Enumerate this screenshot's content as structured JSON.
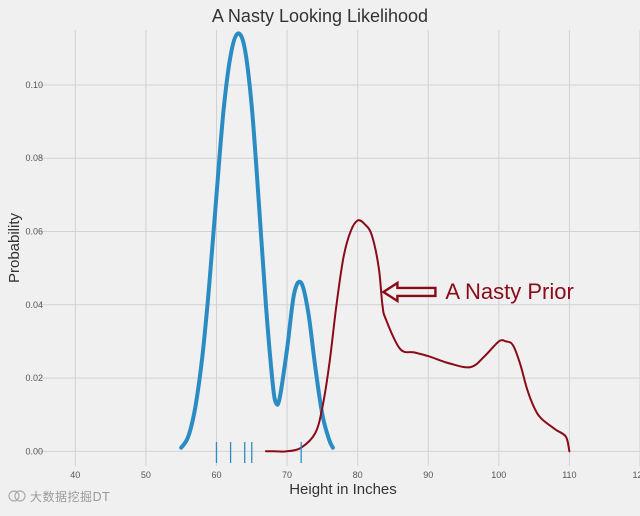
{
  "chart_data": {
    "type": "line",
    "title": "A Nasty Looking Likelihood",
    "xlabel": "Height in Inches",
    "ylabel": "Probability",
    "xlim": [
      35,
      120
    ],
    "ylim": [
      -0.004,
      0.115
    ],
    "xticks": [
      40,
      50,
      60,
      70,
      80,
      90,
      100,
      110,
      120
    ],
    "yticks": [
      0.0,
      0.02,
      0.04,
      0.06,
      0.08,
      0.1
    ],
    "xtick_labels": [
      "40",
      "50",
      "60",
      "70",
      "80",
      "90",
      "100",
      "110",
      "120"
    ],
    "ytick_labels": [
      "0.00",
      "0.02",
      "0.04",
      "0.06",
      "0.08",
      "0.10"
    ],
    "grid": true,
    "series": [
      {
        "color": "#2b8cc4",
        "x": [
          55,
          56,
          57,
          58,
          59,
          60,
          61,
          62,
          63,
          64,
          65,
          66,
          67,
          68,
          68.5,
          69,
          70,
          71,
          72,
          73,
          74,
          75,
          76,
          76.5
        ],
        "y": [
          0.001,
          0.004,
          0.012,
          0.026,
          0.046,
          0.07,
          0.093,
          0.108,
          0.114,
          0.11,
          0.094,
          0.068,
          0.04,
          0.018,
          0.013,
          0.015,
          0.028,
          0.043,
          0.046,
          0.038,
          0.023,
          0.01,
          0.003,
          0.001
        ]
      },
      {
        "color": "#8b0a1a",
        "x": [
          67,
          68,
          70,
          72,
          74,
          75,
          76,
          77,
          78,
          79,
          80,
          81,
          82,
          83,
          83.5,
          84,
          86,
          88,
          90,
          93,
          96,
          98,
          100,
          101,
          102,
          103,
          104,
          105,
          106,
          108,
          109.5,
          110
        ],
        "y": [
          0.0,
          0.0,
          0.0,
          0.001,
          0.005,
          0.012,
          0.024,
          0.04,
          0.053,
          0.06,
          0.063,
          0.062,
          0.059,
          0.05,
          0.04,
          0.036,
          0.028,
          0.027,
          0.026,
          0.024,
          0.023,
          0.026,
          0.03,
          0.03,
          0.029,
          0.024,
          0.017,
          0.012,
          0.009,
          0.006,
          0.004,
          0.0
        ]
      }
    ],
    "rug": {
      "color": "#2b8cc4",
      "x": [
        60,
        62,
        64,
        65,
        72
      ]
    },
    "annotations": [
      {
        "text": "A Nasty Prior",
        "color": "#8b0a1a",
        "x": 84.5,
        "y": 0.0435
      }
    ],
    "colors": {
      "background": "#f0f0f0",
      "grid": "#d2d2d2",
      "likelihood": "#2b8cc4",
      "prior": "#8b0a1a"
    }
  },
  "watermark": {
    "text": "大数据挖掘DT"
  }
}
